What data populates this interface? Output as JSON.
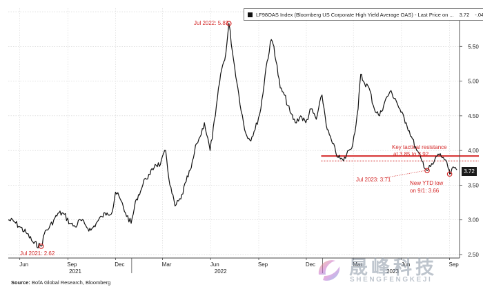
{
  "legend": {
    "series_label": "LF98OAS Index (Bloomberg US Corporate High Yield Average OAS) - Last Price on ...",
    "last_value": "3.72",
    "change": "-.04"
  },
  "source": {
    "label": "Source:",
    "text": "BofA Global Research, Bloomberg"
  },
  "watermark": {
    "cn": "晟峰科技",
    "en": "SHENGFENGKEJI"
  },
  "chart_data": {
    "type": "line",
    "x_labels": [
      "Jun",
      "Sep",
      "Dec",
      "Mar",
      "Jun",
      "Sep",
      "Dec",
      "Mar",
      "Jun",
      "Sep"
    ],
    "year_labels": [
      "2021",
      "2022",
      "2023"
    ],
    "y_ticks": [
      "2.50",
      "3.00",
      "3.50",
      "4.00",
      "4.50",
      "5.00",
      "5.50",
      "6.00"
    ],
    "ylim": [
      2.45,
      6.05
    ],
    "xlim": [
      "2021-05-10",
      "2023-09-20"
    ],
    "grid": true,
    "legend_position": "top",
    "series": [
      {
        "color": "#111111",
        "x": [
          "2021-05-10",
          "2021-05-20",
          "2021-06-01",
          "2021-06-15",
          "2021-06-28",
          "2021-07-12",
          "2021-07-20",
          "2021-07-27",
          "2021-08-05",
          "2021-08-15",
          "2021-08-25",
          "2021-09-05",
          "2021-09-15",
          "2021-09-25",
          "2021-10-05",
          "2021-10-15",
          "2021-10-25",
          "2021-11-05",
          "2021-11-15",
          "2021-11-25",
          "2021-12-01",
          "2021-12-10",
          "2021-12-20",
          "2021-12-31",
          "2022-01-10",
          "2022-01-20",
          "2022-01-27",
          "2022-02-05",
          "2022-02-15",
          "2022-02-25",
          "2022-03-07",
          "2022-03-15",
          "2022-03-25",
          "2022-04-05",
          "2022-04-15",
          "2022-04-25",
          "2022-05-05",
          "2022-05-12",
          "2022-05-20",
          "2022-05-31",
          "2022-06-10",
          "2022-06-20",
          "2022-06-30",
          "2022-07-06",
          "2022-07-15",
          "2022-07-25",
          "2022-08-05",
          "2022-08-15",
          "2022-08-25",
          "2022-09-05",
          "2022-09-15",
          "2022-09-25",
          "2022-09-30",
          "2022-10-12",
          "2022-10-20",
          "2022-10-31",
          "2022-11-10",
          "2022-11-20",
          "2022-11-30",
          "2022-12-10",
          "2022-12-20",
          "2022-12-31",
          "2023-01-10",
          "2023-01-20",
          "2023-01-31",
          "2023-02-10",
          "2023-02-20",
          "2023-02-28",
          "2023-03-10",
          "2023-03-15",
          "2023-03-20",
          "2023-03-31",
          "2023-04-10",
          "2023-04-20",
          "2023-04-30",
          "2023-05-10",
          "2023-05-20",
          "2023-05-31",
          "2023-06-10",
          "2023-06-20",
          "2023-06-30",
          "2023-07-10",
          "2023-07-20",
          "2023-07-31",
          "2023-08-10",
          "2023-08-20",
          "2023-08-31",
          "2023-09-01",
          "2023-09-10",
          "2023-09-15"
        ],
        "values": [
          3.0,
          2.98,
          2.9,
          2.8,
          2.66,
          2.62,
          2.85,
          2.88,
          3.0,
          3.1,
          3.08,
          2.95,
          2.9,
          3.0,
          2.92,
          2.85,
          2.95,
          3.05,
          3.1,
          3.12,
          3.4,
          3.3,
          3.1,
          2.95,
          3.3,
          3.45,
          3.6,
          3.65,
          3.8,
          3.8,
          4.0,
          3.5,
          3.2,
          3.3,
          3.55,
          3.75,
          4.1,
          4.2,
          4.4,
          4.0,
          4.5,
          5.1,
          5.4,
          5.83,
          5.3,
          4.8,
          4.3,
          4.15,
          4.3,
          4.6,
          5.2,
          5.6,
          5.5,
          4.9,
          4.8,
          4.55,
          4.4,
          4.5,
          4.4,
          4.6,
          4.45,
          4.8,
          4.3,
          4.1,
          3.9,
          3.85,
          4.0,
          4.1,
          4.6,
          5.1,
          5.0,
          4.9,
          4.6,
          4.5,
          4.7,
          4.85,
          4.75,
          4.55,
          4.4,
          4.2,
          4.0,
          3.85,
          3.71,
          3.8,
          3.95,
          3.9,
          3.72,
          3.66,
          3.75,
          3.72
        ]
      }
    ],
    "annotations": [
      {
        "text": "Jul 2021: 2.62",
        "x": "2021-07-12",
        "y": 2.62,
        "color": "#d42a2a"
      },
      {
        "text": "Jul 2022: 5.83",
        "x": "2022-07-06",
        "y": 5.83,
        "color": "#d42a2a"
      },
      {
        "text": "Jul 2023: 3.71",
        "x": "2023-07-20",
        "y": 3.71,
        "color": "#d42a2a"
      },
      {
        "text": "New YTD low",
        "x": "2023-09-01",
        "y": 3.66,
        "color": "#d42a2a"
      },
      {
        "text": "on 9/1: 3.66",
        "x": "2023-09-01",
        "y": 3.66,
        "color": "#d42a2a"
      },
      {
        "text": "Key tactical resistance",
        "color": "#d42a2a"
      },
      {
        "text": "at 3.85 to 3.92",
        "color": "#d42a2a"
      }
    ],
    "resistance_band": {
      "low": 3.85,
      "high": 3.92,
      "from": "2023-01-01",
      "color": "#d42a2a"
    }
  }
}
